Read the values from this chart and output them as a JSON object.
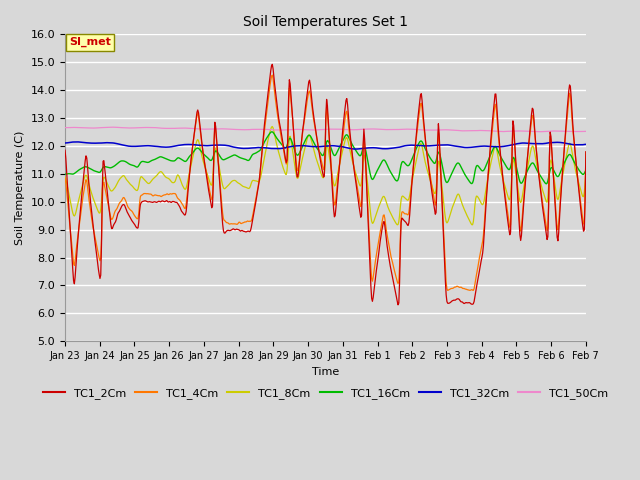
{
  "title": "Soil Temperatures Set 1",
  "xlabel": "Time",
  "ylabel": "Soil Temperature (C)",
  "ylim": [
    5.0,
    16.0
  ],
  "yticks": [
    5.0,
    6.0,
    7.0,
    8.0,
    9.0,
    10.0,
    11.0,
    12.0,
    13.0,
    14.0,
    15.0,
    16.0
  ],
  "bg_outer_color": "#d8d8d8",
  "plot_bg_color": "#d8d8d8",
  "grid_color": "#ffffff",
  "annotation_text": "SI_met",
  "annotation_bg": "#ffffaa",
  "annotation_border": "#888800",
  "annotation_text_color": "#cc0000",
  "colors": {
    "TC1_2Cm": "#cc0000",
    "TC1_4Cm": "#ff7700",
    "TC1_8Cm": "#cccc00",
    "TC1_16Cm": "#00bb00",
    "TC1_32Cm": "#0000cc",
    "TC1_50Cm": "#ee88cc"
  },
  "legend_labels": [
    "TC1_2Cm",
    "TC1_4Cm",
    "TC1_8Cm",
    "TC1_16Cm",
    "TC1_32Cm",
    "TC1_50Cm"
  ],
  "xtick_labels": [
    "Jan 23",
    "Jan 24",
    "Jan 25",
    "Jan 26",
    "Jan 27",
    "Jan 28",
    "Jan 29",
    "Jan 30",
    "Jan 31",
    "Feb 1",
    "Feb 2",
    "Feb 3",
    "Feb 4",
    "Feb 5",
    "Feb 6",
    "Feb 7"
  ],
  "num_points": 672,
  "figsize": [
    6.4,
    4.8
  ],
  "dpi": 100
}
